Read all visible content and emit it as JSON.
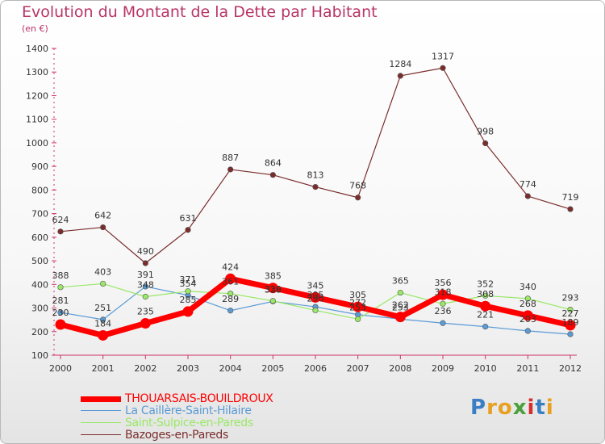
{
  "title": "Evolution du Montant de la Dette par Habitant",
  "unit": "(en €)",
  "chart_data": {
    "type": "line",
    "title": "Evolution du Montant de la Dette par Habitant",
    "ylabel": "(en €)",
    "x": [
      "2000",
      "2001",
      "2002",
      "2003",
      "2004",
      "2005",
      "2006",
      "2007",
      "2008",
      "2009",
      "2010",
      "2011",
      "2012"
    ],
    "ylim": [
      100,
      1400
    ],
    "yticks": [
      100,
      200,
      300,
      400,
      500,
      600,
      700,
      800,
      900,
      1000,
      1100,
      1200,
      1300,
      1400
    ],
    "grid": false,
    "legend": "bottom-left",
    "series": [
      {
        "name": "THOUARSAIS-BOUILDROUX",
        "color": "#ff0000",
        "values": [
          230,
          184,
          235,
          285,
          424,
          385,
          345,
          305,
          262,
          356,
          308,
          268,
          227
        ]
      },
      {
        "name": "La Caillère-Saint-Hilaire",
        "color": "#5b9bd5",
        "values": [
          281,
          251,
          391,
          354,
          289,
          328,
          305,
          272,
          253,
          236,
          221,
          203,
          189
        ]
      },
      {
        "name": "Saint-Sulpice-en-Pareds",
        "color": "#99e866",
        "values": [
          388,
          403,
          348,
          371,
          361,
          330,
          290,
          253,
          365,
          318,
          352,
          340,
          293
        ]
      },
      {
        "name": "Bazoges-en-Pareds",
        "color": "#7b2d2d",
        "values": [
          624,
          642,
          490,
          631,
          887,
          864,
          813,
          768,
          1284,
          1317,
          998,
          774,
          719
        ]
      }
    ],
    "labels": {
      "THOUARSAIS-BOUILDROUX": [
        "230",
        "184",
        "235",
        "285",
        "424",
        "385",
        "345",
        "305",
        "262",
        "356",
        "308",
        "268",
        "227"
      ],
      "La Caillère-Saint-Hilaire": [
        "281",
        "251",
        "391",
        "354",
        "289",
        "328",
        "305",
        "272",
        "253",
        "236",
        "221",
        "203",
        "189"
      ],
      "Saint-Sulpice-en-Pareds": [
        "388",
        "403",
        "348",
        "371",
        "361",
        "330",
        "290",
        "253",
        "365",
        "318",
        "352",
        "340",
        "293"
      ],
      "Bazoges-en-Pareds": [
        "624",
        "642",
        "490",
        "631",
        "887",
        "864",
        "813",
        "768",
        "1284",
        "1317",
        "998",
        "774",
        "719"
      ]
    }
  },
  "logo": {
    "text": "Proxiti",
    "letters": [
      "P",
      "r",
      "o",
      "x",
      "i",
      "t",
      "i"
    ],
    "colors": [
      "#3a7fc4",
      "#e8a020",
      "#e8a020",
      "#4aa03a",
      "#d62e2e",
      "#3a7fc4",
      "#e8a020"
    ]
  }
}
